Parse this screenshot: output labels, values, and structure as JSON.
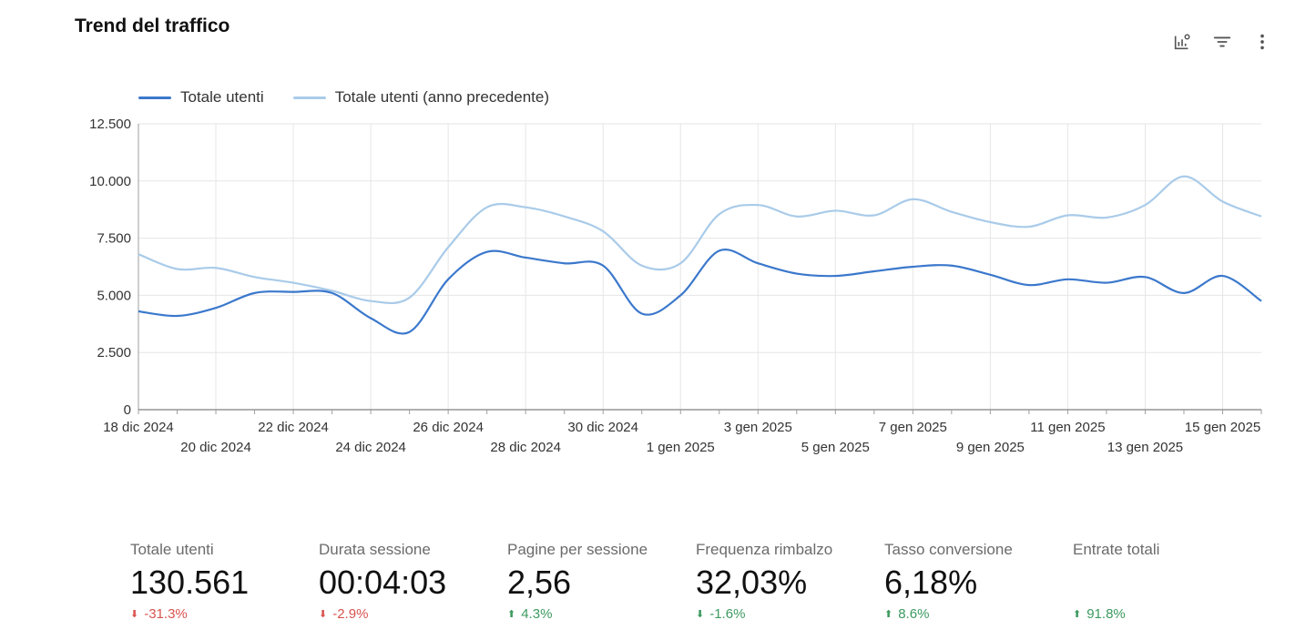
{
  "title": "Trend del traffico",
  "toolbar": {
    "icons": [
      "chart-insights-icon",
      "filter-icon",
      "more-vert-icon"
    ]
  },
  "colors": {
    "current": "#3b78cc",
    "previous": "#a9cbe9",
    "negative": "#d9534f",
    "positive": "#3c9a5f"
  },
  "chart_data": {
    "type": "line",
    "legend_position": "top-left",
    "x": [
      "18 dic 2024",
      "19 dic 2024",
      "20 dic 2024",
      "21 dic 2024",
      "22 dic 2024",
      "23 dic 2024",
      "24 dic 2024",
      "25 dic 2024",
      "26 dic 2024",
      "27 dic 2024",
      "28 dic 2024",
      "29 dic 2024",
      "30 dic 2024",
      "31 dic 2024",
      "1 gen 2025",
      "2 gen 2025",
      "3 gen 2025",
      "4 gen 2025",
      "5 gen 2025",
      "6 gen 2025",
      "7 gen 2025",
      "8 gen 2025",
      "9 gen 2025",
      "10 gen 2025",
      "11 gen 2025",
      "12 gen 2025",
      "13 gen 2025",
      "14 gen 2025",
      "15 gen 2025",
      "16 gen 2025"
    ],
    "x_tick_labels": [
      "18 dic 2024",
      "20 dic 2024",
      "22 dic 2024",
      "24 dic 2024",
      "26 dic 2024",
      "28 dic 2024",
      "30 dic 2024",
      "1 gen 2025",
      "3 gen 2025",
      "5 gen 2025",
      "7 gen 2025",
      "9 gen 2025",
      "11 gen 2025",
      "13 gen 2025",
      "15 gen 2025"
    ],
    "series": [
      {
        "name": "Totale utenti",
        "values": [
          4300,
          4100,
          4450,
          5100,
          5150,
          5100,
          4000,
          3400,
          5700,
          6900,
          6650,
          6400,
          6300,
          4200,
          5000,
          6950,
          6400,
          5950,
          5850,
          6050,
          6250,
          6300,
          5900,
          5450,
          5700,
          5550,
          5800,
          5100,
          5850,
          4750
        ]
      },
      {
        "name": "Totale utenti (anno precedente)",
        "values": [
          6800,
          6150,
          6200,
          5800,
          5550,
          5200,
          4750,
          4900,
          7100,
          8850,
          8850,
          8450,
          7800,
          6300,
          6400,
          8550,
          8950,
          8450,
          8700,
          8500,
          9200,
          8650,
          8200,
          8000,
          8500,
          8400,
          8950,
          10200,
          9100,
          8450
        ]
      }
    ],
    "ylim": [
      0,
      12500
    ],
    "y_ticks": [
      "0",
      "2.500",
      "5.000",
      "7.500",
      "10.000",
      "12.500"
    ],
    "grid": true
  },
  "metrics": [
    {
      "label": "Totale utenti",
      "value": "130.561",
      "delta": "-31.3%",
      "trend": "down",
      "tone": "negative"
    },
    {
      "label": "Durata sessione",
      "value": "00:04:03",
      "delta": "-2.9%",
      "trend": "down",
      "tone": "negative"
    },
    {
      "label": "Pagine per sessione",
      "value": "2,56",
      "delta": "4.3%",
      "trend": "up",
      "tone": "positive"
    },
    {
      "label": "Frequenza rimbalzo",
      "value": "32,03%",
      "delta": "-1.6%",
      "trend": "down",
      "tone": "positive"
    },
    {
      "label": "Tasso conversione",
      "value": "6,18%",
      "delta": "8.6%",
      "trend": "up",
      "tone": "positive"
    },
    {
      "label": "Entrate totali",
      "value": "",
      "delta": "91.8%",
      "trend": "up",
      "tone": "positive"
    }
  ]
}
